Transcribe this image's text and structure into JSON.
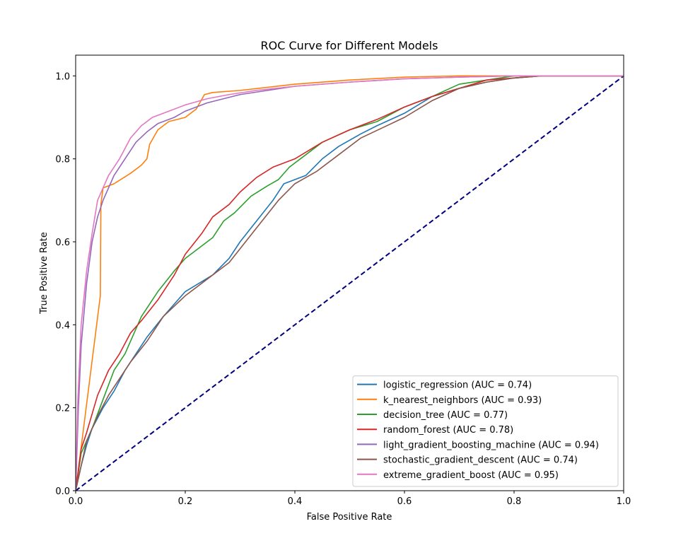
{
  "chart_data": {
    "type": "line",
    "title": "ROC Curve for Different Models",
    "xlabel": "False Positive Rate",
    "ylabel": "True Positive Rate",
    "xlim": [
      0.0,
      1.0
    ],
    "ylim": [
      0.0,
      1.05
    ],
    "xticks": [
      "0.0",
      "0.2",
      "0.4",
      "0.6",
      "0.8",
      "1.0"
    ],
    "yticks": [
      "0.0",
      "0.2",
      "0.4",
      "0.6",
      "0.8",
      "1.0"
    ],
    "grid": false,
    "legend_position": "lower-right",
    "diagonal": {
      "points": [
        [
          0,
          0
        ],
        [
          1,
          1
        ]
      ],
      "color": "#000080",
      "style": "dashed"
    },
    "series": [
      {
        "name": "logistic_regression (AUC = 0.74)",
        "color": "#1f77b4",
        "points": [
          [
            0,
            0
          ],
          [
            0.01,
            0.06
          ],
          [
            0.02,
            0.11
          ],
          [
            0.03,
            0.15
          ],
          [
            0.05,
            0.2
          ],
          [
            0.07,
            0.24
          ],
          [
            0.09,
            0.29
          ],
          [
            0.11,
            0.33
          ],
          [
            0.13,
            0.37
          ],
          [
            0.16,
            0.42
          ],
          [
            0.2,
            0.48
          ],
          [
            0.25,
            0.52
          ],
          [
            0.28,
            0.56
          ],
          [
            0.3,
            0.6
          ],
          [
            0.33,
            0.65
          ],
          [
            0.36,
            0.7
          ],
          [
            0.38,
            0.74
          ],
          [
            0.42,
            0.76
          ],
          [
            0.45,
            0.8
          ],
          [
            0.48,
            0.83
          ],
          [
            0.52,
            0.86
          ],
          [
            0.55,
            0.88
          ],
          [
            0.6,
            0.91
          ],
          [
            0.65,
            0.95
          ],
          [
            0.7,
            0.97
          ],
          [
            0.75,
            0.985
          ],
          [
            0.8,
            0.995
          ],
          [
            0.85,
            1.0
          ],
          [
            1.0,
            1.0
          ]
        ]
      },
      {
        "name": "k_nearest_neighbors (AUC = 0.93)",
        "color": "#ff7f0e",
        "points": [
          [
            0,
            0
          ],
          [
            0.045,
            0.47
          ],
          [
            0.046,
            0.69
          ],
          [
            0.05,
            0.73
          ],
          [
            0.07,
            0.74
          ],
          [
            0.1,
            0.765
          ],
          [
            0.12,
            0.785
          ],
          [
            0.13,
            0.8
          ],
          [
            0.135,
            0.835
          ],
          [
            0.15,
            0.87
          ],
          [
            0.17,
            0.89
          ],
          [
            0.2,
            0.9
          ],
          [
            0.22,
            0.92
          ],
          [
            0.235,
            0.955
          ],
          [
            0.25,
            0.96
          ],
          [
            0.3,
            0.965
          ],
          [
            0.4,
            0.98
          ],
          [
            0.5,
            0.99
          ],
          [
            0.6,
            0.997
          ],
          [
            0.7,
            1.0
          ],
          [
            1.0,
            1.0
          ]
        ]
      },
      {
        "name": "decision_tree (AUC = 0.77)",
        "color": "#2ca02c",
        "points": [
          [
            0,
            0
          ],
          [
            0.01,
            0.09
          ],
          [
            0.03,
            0.15
          ],
          [
            0.05,
            0.22
          ],
          [
            0.07,
            0.29
          ],
          [
            0.09,
            0.33
          ],
          [
            0.12,
            0.42
          ],
          [
            0.15,
            0.48
          ],
          [
            0.18,
            0.53
          ],
          [
            0.2,
            0.56
          ],
          [
            0.25,
            0.61
          ],
          [
            0.27,
            0.65
          ],
          [
            0.29,
            0.67
          ],
          [
            0.32,
            0.71
          ],
          [
            0.35,
            0.735
          ],
          [
            0.37,
            0.75
          ],
          [
            0.39,
            0.78
          ],
          [
            0.42,
            0.81
          ],
          [
            0.45,
            0.84
          ],
          [
            0.5,
            0.87
          ],
          [
            0.55,
            0.89
          ],
          [
            0.6,
            0.925
          ],
          [
            0.65,
            0.95
          ],
          [
            0.7,
            0.98
          ],
          [
            0.75,
            0.99
          ],
          [
            0.8,
            1.0
          ],
          [
            1.0,
            1.0
          ]
        ]
      },
      {
        "name": "random_forest (AUC = 0.78)",
        "color": "#d62728",
        "points": [
          [
            0,
            0
          ],
          [
            0.01,
            0.1
          ],
          [
            0.02,
            0.14
          ],
          [
            0.04,
            0.23
          ],
          [
            0.06,
            0.29
          ],
          [
            0.08,
            0.33
          ],
          [
            0.1,
            0.38
          ],
          [
            0.12,
            0.41
          ],
          [
            0.15,
            0.46
          ],
          [
            0.18,
            0.52
          ],
          [
            0.2,
            0.57
          ],
          [
            0.23,
            0.62
          ],
          [
            0.25,
            0.66
          ],
          [
            0.28,
            0.69
          ],
          [
            0.3,
            0.72
          ],
          [
            0.33,
            0.755
          ],
          [
            0.36,
            0.78
          ],
          [
            0.4,
            0.8
          ],
          [
            0.45,
            0.84
          ],
          [
            0.5,
            0.87
          ],
          [
            0.55,
            0.895
          ],
          [
            0.6,
            0.925
          ],
          [
            0.65,
            0.95
          ],
          [
            0.7,
            0.97
          ],
          [
            0.75,
            0.99
          ],
          [
            0.8,
            0.995
          ],
          [
            0.85,
            1.0
          ],
          [
            1.0,
            1.0
          ]
        ]
      },
      {
        "name": "light_gradient_boosting_machine (AUC = 0.94)",
        "color": "#9467bd",
        "points": [
          [
            0,
            0
          ],
          [
            0.005,
            0.2
          ],
          [
            0.01,
            0.35
          ],
          [
            0.02,
            0.5
          ],
          [
            0.03,
            0.6
          ],
          [
            0.04,
            0.66
          ],
          [
            0.05,
            0.7
          ],
          [
            0.07,
            0.76
          ],
          [
            0.09,
            0.8
          ],
          [
            0.11,
            0.84
          ],
          [
            0.13,
            0.865
          ],
          [
            0.15,
            0.885
          ],
          [
            0.18,
            0.9
          ],
          [
            0.2,
            0.915
          ],
          [
            0.24,
            0.935
          ],
          [
            0.27,
            0.945
          ],
          [
            0.3,
            0.955
          ],
          [
            0.35,
            0.965
          ],
          [
            0.4,
            0.975
          ],
          [
            0.5,
            0.985
          ],
          [
            0.6,
            0.993
          ],
          [
            0.7,
            0.997
          ],
          [
            0.8,
            1.0
          ],
          [
            1.0,
            1.0
          ]
        ]
      },
      {
        "name": "stochastic_gradient_descent (AUC = 0.74)",
        "color": "#8c564b",
        "points": [
          [
            0,
            0
          ],
          [
            0.01,
            0.06
          ],
          [
            0.02,
            0.12
          ],
          [
            0.04,
            0.18
          ],
          [
            0.06,
            0.23
          ],
          [
            0.08,
            0.27
          ],
          [
            0.1,
            0.31
          ],
          [
            0.13,
            0.36
          ],
          [
            0.16,
            0.42
          ],
          [
            0.2,
            0.47
          ],
          [
            0.24,
            0.51
          ],
          [
            0.28,
            0.55
          ],
          [
            0.31,
            0.6
          ],
          [
            0.34,
            0.65
          ],
          [
            0.37,
            0.7
          ],
          [
            0.4,
            0.74
          ],
          [
            0.44,
            0.77
          ],
          [
            0.48,
            0.81
          ],
          [
            0.52,
            0.85
          ],
          [
            0.56,
            0.875
          ],
          [
            0.6,
            0.9
          ],
          [
            0.65,
            0.94
          ],
          [
            0.7,
            0.97
          ],
          [
            0.75,
            0.985
          ],
          [
            0.8,
            0.995
          ],
          [
            0.85,
            1.0
          ],
          [
            1.0,
            1.0
          ]
        ]
      },
      {
        "name": "extreme_gradient_boost (AUC = 0.95)",
        "color": "#e377c2",
        "points": [
          [
            0,
            0
          ],
          [
            0.004,
            0.22
          ],
          [
            0.01,
            0.4
          ],
          [
            0.02,
            0.53
          ],
          [
            0.03,
            0.62
          ],
          [
            0.04,
            0.7
          ],
          [
            0.06,
            0.76
          ],
          [
            0.08,
            0.8
          ],
          [
            0.1,
            0.85
          ],
          [
            0.12,
            0.88
          ],
          [
            0.14,
            0.9
          ],
          [
            0.17,
            0.915
          ],
          [
            0.2,
            0.93
          ],
          [
            0.24,
            0.945
          ],
          [
            0.28,
            0.955
          ],
          [
            0.33,
            0.965
          ],
          [
            0.4,
            0.975
          ],
          [
            0.5,
            0.985
          ],
          [
            0.6,
            0.993
          ],
          [
            0.7,
            0.997
          ],
          [
            0.8,
            1.0
          ],
          [
            1.0,
            1.0
          ]
        ]
      }
    ]
  }
}
